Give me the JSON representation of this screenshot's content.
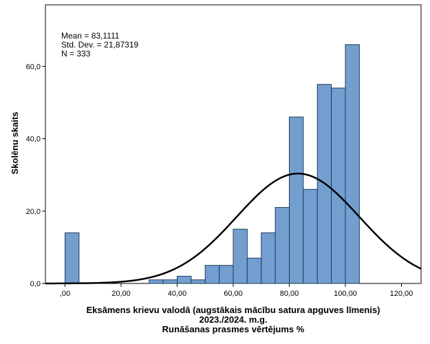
{
  "chart_data": {
    "type": "bar",
    "subtype": "histogram",
    "bin_width": 5,
    "bins": [
      {
        "start": 0,
        "end": 5,
        "count": 14
      },
      {
        "start": 30,
        "end": 35,
        "count": 1
      },
      {
        "start": 35,
        "end": 40,
        "count": 1
      },
      {
        "start": 40,
        "end": 45,
        "count": 2
      },
      {
        "start": 45,
        "end": 50,
        "count": 1
      },
      {
        "start": 50,
        "end": 55,
        "count": 5
      },
      {
        "start": 55,
        "end": 60,
        "count": 5
      },
      {
        "start": 60,
        "end": 65,
        "count": 15
      },
      {
        "start": 65,
        "end": 70,
        "count": 7
      },
      {
        "start": 70,
        "end": 75,
        "count": 14
      },
      {
        "start": 75,
        "end": 80,
        "count": 21
      },
      {
        "start": 80,
        "end": 85,
        "count": 46
      },
      {
        "start": 85,
        "end": 90,
        "count": 26
      },
      {
        "start": 90,
        "end": 95,
        "count": 55
      },
      {
        "start": 95,
        "end": 100,
        "count": 54
      },
      {
        "start": 100,
        "end": 105,
        "count": 66
      }
    ],
    "normal_curve": {
      "mean": 83.1111,
      "std_dev": 21.87319,
      "n": 333
    },
    "stats_lines": [
      "Mean = 83,1111",
      "Std. Dev. = 21,87319",
      "N = 333"
    ],
    "xlabel_lines": [
      "Eksāmens krievu valodā (augstākais mācību satura apguves līmenis)",
      "2023./2024. m.g.",
      "Runāšanas prasmes vērtējums %"
    ],
    "ylabel": "Skolēnu skaits",
    "xlim": [
      -7,
      127
    ],
    "ylim": [
      0,
      77
    ],
    "x_ticks": [
      0,
      20,
      40,
      60,
      80,
      100,
      120
    ],
    "x_tick_labels": [
      ",00",
      "20,00",
      "40,00",
      "60,00",
      "80,00",
      "100,00",
      "120,00"
    ],
    "y_ticks": [
      0,
      20,
      40,
      60
    ],
    "y_tick_labels": [
      "0,0",
      "20,0",
      "40,0",
      "60,0"
    ],
    "bar_color": "#729fcf",
    "bar_edge_color": "#1f3a5a",
    "curve_color": "#000000",
    "grid": false,
    "legend": "none"
  }
}
